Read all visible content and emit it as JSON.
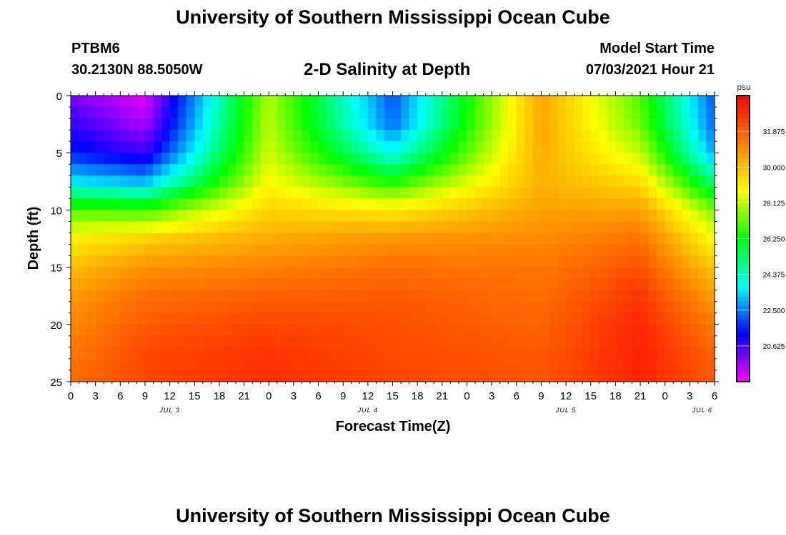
{
  "header": {
    "title": "University of Southern Mississippi Ocean Cube",
    "station": "PTBM6",
    "coords": "30.2130N  88.5050W",
    "subtitle": "2-D Salinity at Depth",
    "start_label": "Model Start Time",
    "start_value": "07/03/2021 Hour 21"
  },
  "footer": {
    "title": "University of Southern Mississippi Ocean Cube"
  },
  "chart_data": {
    "type": "heatmap",
    "title": "2-D Salinity at Depth",
    "xlabel": "Forecast Time(Z)",
    "ylabel": "Depth (ft)",
    "x_hours_range": [
      0,
      78
    ],
    "y_range": [
      0,
      25
    ],
    "y_inverted": true,
    "y_ticks": [
      0,
      5,
      10,
      15,
      20,
      25
    ],
    "x_tick_labels": [
      "0",
      "3",
      "6",
      "9",
      "12",
      "15",
      "18",
      "21",
      "0",
      "3",
      "6",
      "9",
      "12",
      "15",
      "18",
      "21",
      "0",
      "3",
      "6",
      "9",
      "12",
      "15",
      "18",
      "21",
      "0",
      "3",
      "6"
    ],
    "day_labels": [
      {
        "label": "JUL 3",
        "hour": 12
      },
      {
        "label": "JUL 4",
        "hour": 36
      },
      {
        "label": "JUL 5",
        "hour": 60
      },
      {
        "label": "JUL 6",
        "hour": 76.5
      }
    ],
    "colorbar": {
      "unit": "psu",
      "range": [
        18.75,
        33.75
      ],
      "tick_values": [
        20.625,
        22.5,
        24.375,
        26.25,
        28.125,
        30.0,
        31.875
      ],
      "tick_labels": [
        "20.625",
        "22.500",
        "24.375",
        "26.250",
        "28.125",
        "30.000",
        "31.875"
      ],
      "colors": [
        "#ff00ff",
        "#0000ff",
        "#00ffff",
        "#00ff00",
        "#ffff00",
        "#ff8000",
        "#ff0000"
      ]
    },
    "grid": false,
    "depth_profile_samples": {
      "depths_ft": [
        0,
        2.5,
        5,
        7.5,
        10,
        12.5,
        15,
        17.5,
        20,
        22.5,
        25
      ],
      "hour_0": [
        20.0,
        20.8,
        21.5,
        23.5,
        27.0,
        29.0,
        30.0,
        30.7,
        31.1,
        31.4,
        31.6
      ],
      "hour_9": [
        19.0,
        19.6,
        20.6,
        23.0,
        26.8,
        29.6,
        30.9,
        31.6,
        32.0,
        32.3,
        32.4
      ],
      "hour_24": [
        28.0,
        28.1,
        28.3,
        28.8,
        29.6,
        30.4,
        31.2,
        31.9,
        32.4,
        32.7,
        32.9
      ],
      "hour_39": [
        22.0,
        22.3,
        23.8,
        26.4,
        29.1,
        30.8,
        31.6,
        32.0,
        32.2,
        32.3,
        32.4
      ],
      "hour_57": [
        30.5,
        30.5,
        30.4,
        30.3,
        30.6,
        31.0,
        31.4,
        31.6,
        31.8,
        32.0,
        32.1
      ],
      "hour_69": [
        27.0,
        27.3,
        28.1,
        29.4,
        30.6,
        31.5,
        32.2,
        32.7,
        33.0,
        33.1,
        33.1
      ],
      "hour_78": [
        22.0,
        22.2,
        22.8,
        25.0,
        27.4,
        28.7,
        29.8,
        30.6,
        31.3,
        31.8,
        32.0
      ]
    }
  }
}
